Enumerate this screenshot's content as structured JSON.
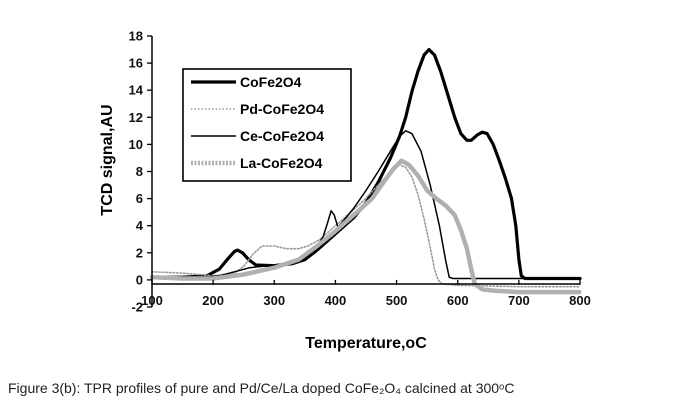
{
  "caption": {
    "text": "Figure 3(b): TPR profiles of pure and Pd/Ce/La doped CoFe₂O₄ calcined at 300ᵒC"
  },
  "chart_data": {
    "type": "line",
    "title": "",
    "xlabel": "Temperature,oC",
    "ylabel": "TCD signal,AU",
    "xlim": [
      100,
      800
    ],
    "ylim": [
      -2,
      18
    ],
    "x_ticks": [
      100,
      200,
      300,
      400,
      500,
      600,
      700,
      800
    ],
    "y_ticks": [
      -2,
      0,
      2,
      4,
      6,
      8,
      10,
      12,
      14,
      16,
      18
    ],
    "grid": false,
    "legend_position": "upper-left, inside plot",
    "series": [
      {
        "name": "CoFe2O4",
        "color": "#000000",
        "style": "thick solid",
        "points": [
          [
            100,
            0.2
          ],
          [
            150,
            0.2
          ],
          [
            190,
            0.3
          ],
          [
            210,
            0.8
          ],
          [
            225,
            1.6
          ],
          [
            235,
            2.1
          ],
          [
            240,
            2.2
          ],
          [
            248,
            2.0
          ],
          [
            258,
            1.5
          ],
          [
            270,
            1.1
          ],
          [
            300,
            1.05
          ],
          [
            330,
            1.2
          ],
          [
            350,
            1.5
          ],
          [
            370,
            2.2
          ],
          [
            390,
            3.0
          ],
          [
            410,
            3.8
          ],
          [
            430,
            4.6
          ],
          [
            450,
            5.7
          ],
          [
            470,
            7.2
          ],
          [
            490,
            9.0
          ],
          [
            505,
            10.6
          ],
          [
            515,
            12.0
          ],
          [
            525,
            13.9
          ],
          [
            535,
            15.4
          ],
          [
            545,
            16.6
          ],
          [
            553,
            17.0
          ],
          [
            562,
            16.6
          ],
          [
            572,
            15.4
          ],
          [
            585,
            13.5
          ],
          [
            595,
            12.0
          ],
          [
            605,
            10.8
          ],
          [
            615,
            10.3
          ],
          [
            622,
            10.3
          ],
          [
            632,
            10.7
          ],
          [
            640,
            10.9
          ],
          [
            648,
            10.8
          ],
          [
            658,
            10.0
          ],
          [
            668,
            8.8
          ],
          [
            678,
            7.5
          ],
          [
            688,
            6.0
          ],
          [
            695,
            4.0
          ],
          [
            700,
            1.5
          ],
          [
            704,
            0.3
          ],
          [
            710,
            0.1
          ],
          [
            800,
            0.1
          ]
        ]
      },
      {
        "name": "Pd-CoFe2O4",
        "color": "#9a9a9a",
        "style": "dotted",
        "points": [
          [
            100,
            0.6
          ],
          [
            150,
            0.5
          ],
          [
            200,
            0.3
          ],
          [
            235,
            0.5
          ],
          [
            250,
            1.0
          ],
          [
            265,
            1.9
          ],
          [
            280,
            2.5
          ],
          [
            300,
            2.5
          ],
          [
            320,
            2.3
          ],
          [
            340,
            2.3
          ],
          [
            355,
            2.5
          ],
          [
            375,
            3.0
          ],
          [
            395,
            3.8
          ],
          [
            420,
            4.8
          ],
          [
            445,
            5.8
          ],
          [
            470,
            7.0
          ],
          [
            490,
            8.0
          ],
          [
            505,
            8.5
          ],
          [
            515,
            8.3
          ],
          [
            525,
            7.6
          ],
          [
            535,
            6.3
          ],
          [
            545,
            4.5
          ],
          [
            555,
            2.4
          ],
          [
            562,
            0.8
          ],
          [
            568,
            0.0
          ],
          [
            575,
            -0.3
          ],
          [
            600,
            -0.4
          ],
          [
            700,
            -0.5
          ],
          [
            800,
            -0.5
          ]
        ]
      },
      {
        "name": "Ce-CoFe2O4",
        "color": "#000000",
        "style": "thin solid",
        "points": [
          [
            100,
            0.1
          ],
          [
            160,
            0.1
          ],
          [
            210,
            0.3
          ],
          [
            260,
            0.9
          ],
          [
            300,
            1.1
          ],
          [
            340,
            1.4
          ],
          [
            360,
            1.9
          ],
          [
            370,
            2.5
          ],
          [
            380,
            3.2
          ],
          [
            387,
            4.2
          ],
          [
            393,
            5.1
          ],
          [
            398,
            4.8
          ],
          [
            404,
            3.9
          ],
          [
            412,
            4.3
          ],
          [
            430,
            5.3
          ],
          [
            450,
            6.6
          ],
          [
            470,
            8.0
          ],
          [
            490,
            9.5
          ],
          [
            505,
            10.6
          ],
          [
            515,
            11.0
          ],
          [
            525,
            10.8
          ],
          [
            540,
            9.5
          ],
          [
            555,
            7.0
          ],
          [
            570,
            4.0
          ],
          [
            580,
            1.5
          ],
          [
            586,
            0.2
          ],
          [
            592,
            0.1
          ],
          [
            800,
            0.1
          ]
        ]
      },
      {
        "name": "La-CoFe2O4",
        "color": "#b0b0b0",
        "style": "thick hatched",
        "points": [
          [
            100,
            0.2
          ],
          [
            150,
            0.1
          ],
          [
            200,
            0.1
          ],
          [
            250,
            0.4
          ],
          [
            300,
            0.9
          ],
          [
            340,
            1.5
          ],
          [
            370,
            2.5
          ],
          [
            400,
            3.6
          ],
          [
            430,
            4.8
          ],
          [
            460,
            6.0
          ],
          [
            480,
            7.3
          ],
          [
            495,
            8.2
          ],
          [
            508,
            8.8
          ],
          [
            520,
            8.5
          ],
          [
            535,
            7.7
          ],
          [
            550,
            6.6
          ],
          [
            565,
            6.0
          ],
          [
            580,
            5.5
          ],
          [
            595,
            4.8
          ],
          [
            605,
            3.7
          ],
          [
            615,
            2.3
          ],
          [
            622,
            0.8
          ],
          [
            628,
            -0.3
          ],
          [
            640,
            -0.7
          ],
          [
            660,
            -0.8
          ],
          [
            700,
            -0.9
          ],
          [
            800,
            -0.9
          ]
        ]
      }
    ]
  }
}
